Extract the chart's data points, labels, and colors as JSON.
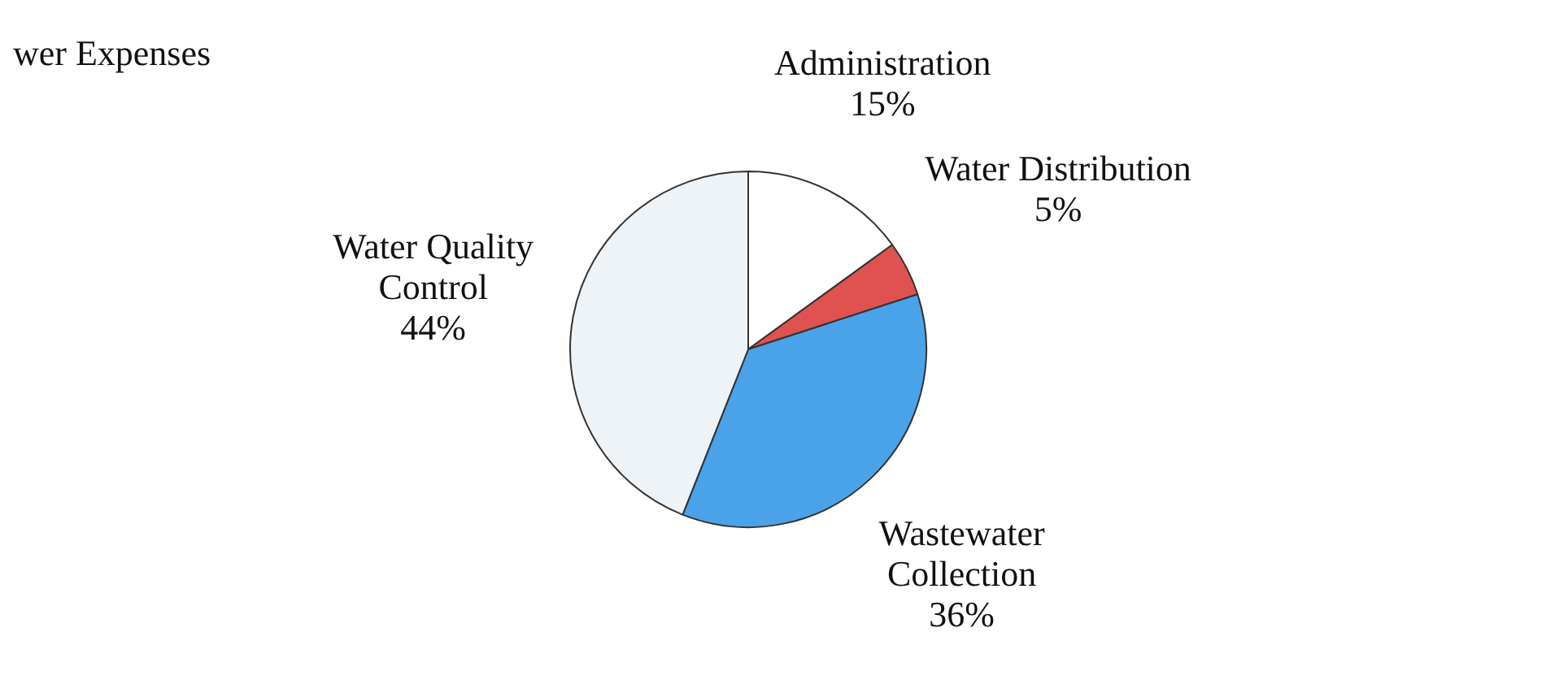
{
  "chart_data": {
    "type": "pie",
    "title": "wer Expenses",
    "categories": [
      "Administration",
      "Water Distribution",
      "Wastewater Collection",
      "Water Quality Control"
    ],
    "values": [
      15,
      5,
      36,
      44
    ],
    "colors": [
      "#ffffff",
      "#e0524f",
      "#4aa3e8",
      "#eef3f8"
    ],
    "value_labels": [
      "15%",
      "5%",
      "36%",
      "44%"
    ],
    "legend": false
  }
}
